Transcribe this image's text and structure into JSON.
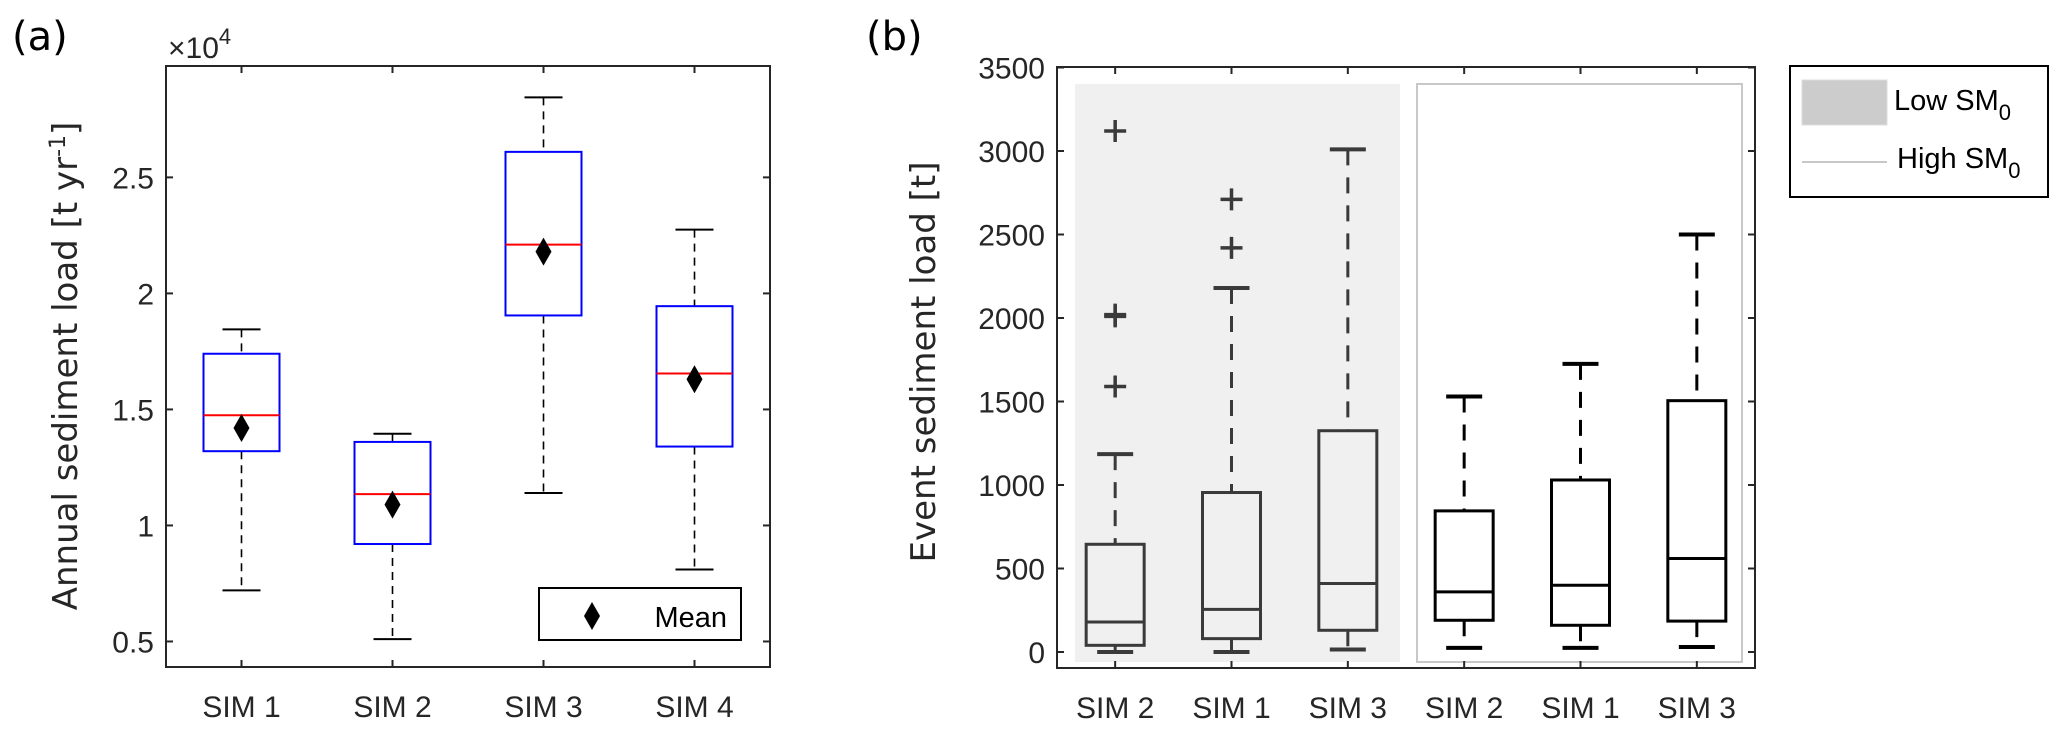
{
  "chart_data": [
    {
      "type": "box",
      "panel_label": "(a)",
      "title": "",
      "xlabel": "",
      "ylabel": "Annual sediment load [t yr-1]",
      "ylabel_parts": {
        "main": "Annual sediment load [t yr",
        "sup": "-1",
        "end": "]"
      },
      "y_multiplier_label": "×10",
      "y_multiplier_exp": "4",
      "ylim": [
        0.39,
        2.98
      ],
      "yticks": [
        0.5,
        1,
        1.5,
        2,
        2.5
      ],
      "ytick_labels": [
        "0.5",
        "1",
        "1.5",
        "2",
        "2.5"
      ],
      "categories": [
        "SIM 1",
        "SIM 2",
        "SIM 3",
        "SIM 4"
      ],
      "box_color": "#0000ff",
      "median_color": "#ff0000",
      "whisker_color": "#000000",
      "boxes": [
        {
          "category": "SIM 1",
          "whisker_low": 0.72,
          "q1": 1.32,
          "median": 1.475,
          "q3": 1.74,
          "whisker_high": 1.845,
          "mean": 1.42
        },
        {
          "category": "SIM 2",
          "whisker_low": 0.51,
          "q1": 0.92,
          "median": 1.135,
          "q3": 1.36,
          "whisker_high": 1.395,
          "mean": 1.09
        },
        {
          "category": "SIM 3",
          "whisker_low": 1.14,
          "q1": 1.905,
          "median": 2.21,
          "q3": 2.61,
          "whisker_high": 2.845,
          "mean": 2.18
        },
        {
          "category": "SIM 4",
          "whisker_low": 0.81,
          "q1": 1.34,
          "median": 1.655,
          "q3": 1.945,
          "whisker_high": 2.275,
          "mean": 1.63
        }
      ],
      "legend": {
        "position": "bottom-right",
        "entries": [
          {
            "label": "Mean",
            "marker": "diamond"
          }
        ]
      }
    },
    {
      "type": "box",
      "panel_label": "(b)",
      "title": "",
      "xlabel": "",
      "ylabel": "Event sediment load [t]",
      "ylim": [
        -100,
        3500
      ],
      "yticks": [
        0,
        500,
        1000,
        1500,
        2000,
        2500,
        3000,
        3500
      ],
      "ytick_labels": [
        "0",
        "500",
        "1000",
        "1500",
        "2000",
        "2500",
        "3000",
        "3500"
      ],
      "categories": [
        "SIM 2",
        "SIM 1",
        "SIM 3",
        "SIM 2",
        "SIM 1",
        "SIM 3"
      ],
      "groups": [
        {
          "name": "Low SM0",
          "background": "#f0f0f0",
          "box_color": "#3a3a3a",
          "indices": [
            0,
            1,
            2
          ]
        },
        {
          "name": "High SM0",
          "background": "#ffffff",
          "border": "#c8c8c8",
          "box_color": "#000000",
          "indices": [
            3,
            4,
            5
          ]
        }
      ],
      "boxes": [
        {
          "category": "SIM 2",
          "group": "Low SM0",
          "whisker_low": 0,
          "q1": 40,
          "median": 180,
          "q3": 645,
          "whisker_high": 1185,
          "outliers": [
            1590,
            2010,
            2020,
            3120
          ]
        },
        {
          "category": "SIM 1",
          "group": "Low SM0",
          "whisker_low": 0,
          "q1": 80,
          "median": 255,
          "q3": 955,
          "whisker_high": 2180,
          "outliers": [
            2420,
            2710
          ]
        },
        {
          "category": "SIM 3",
          "group": "Low SM0",
          "whisker_low": 15,
          "q1": 130,
          "median": 410,
          "q3": 1325,
          "whisker_high": 3010,
          "outliers": []
        },
        {
          "category": "SIM 2",
          "group": "High SM0",
          "whisker_low": 25,
          "q1": 190,
          "median": 360,
          "q3": 845,
          "whisker_high": 1530,
          "outliers": []
        },
        {
          "category": "SIM 1",
          "group": "High SM0",
          "whisker_low": 25,
          "q1": 160,
          "median": 400,
          "q3": 1030,
          "whisker_high": 1725,
          "outliers": []
        },
        {
          "category": "SIM 3",
          "group": "High SM0",
          "whisker_low": 30,
          "q1": 185,
          "median": 560,
          "q3": 1505,
          "whisker_high": 2500,
          "outliers": []
        }
      ],
      "legend": {
        "position": "outside-top-right",
        "entries": [
          {
            "label": "Low SM",
            "sub": "0",
            "swatch": "patch",
            "color": "#cccccc"
          },
          {
            "label": "High SM",
            "sub": "0",
            "swatch": "line",
            "color": "#c8c8c8"
          }
        ]
      }
    }
  ]
}
